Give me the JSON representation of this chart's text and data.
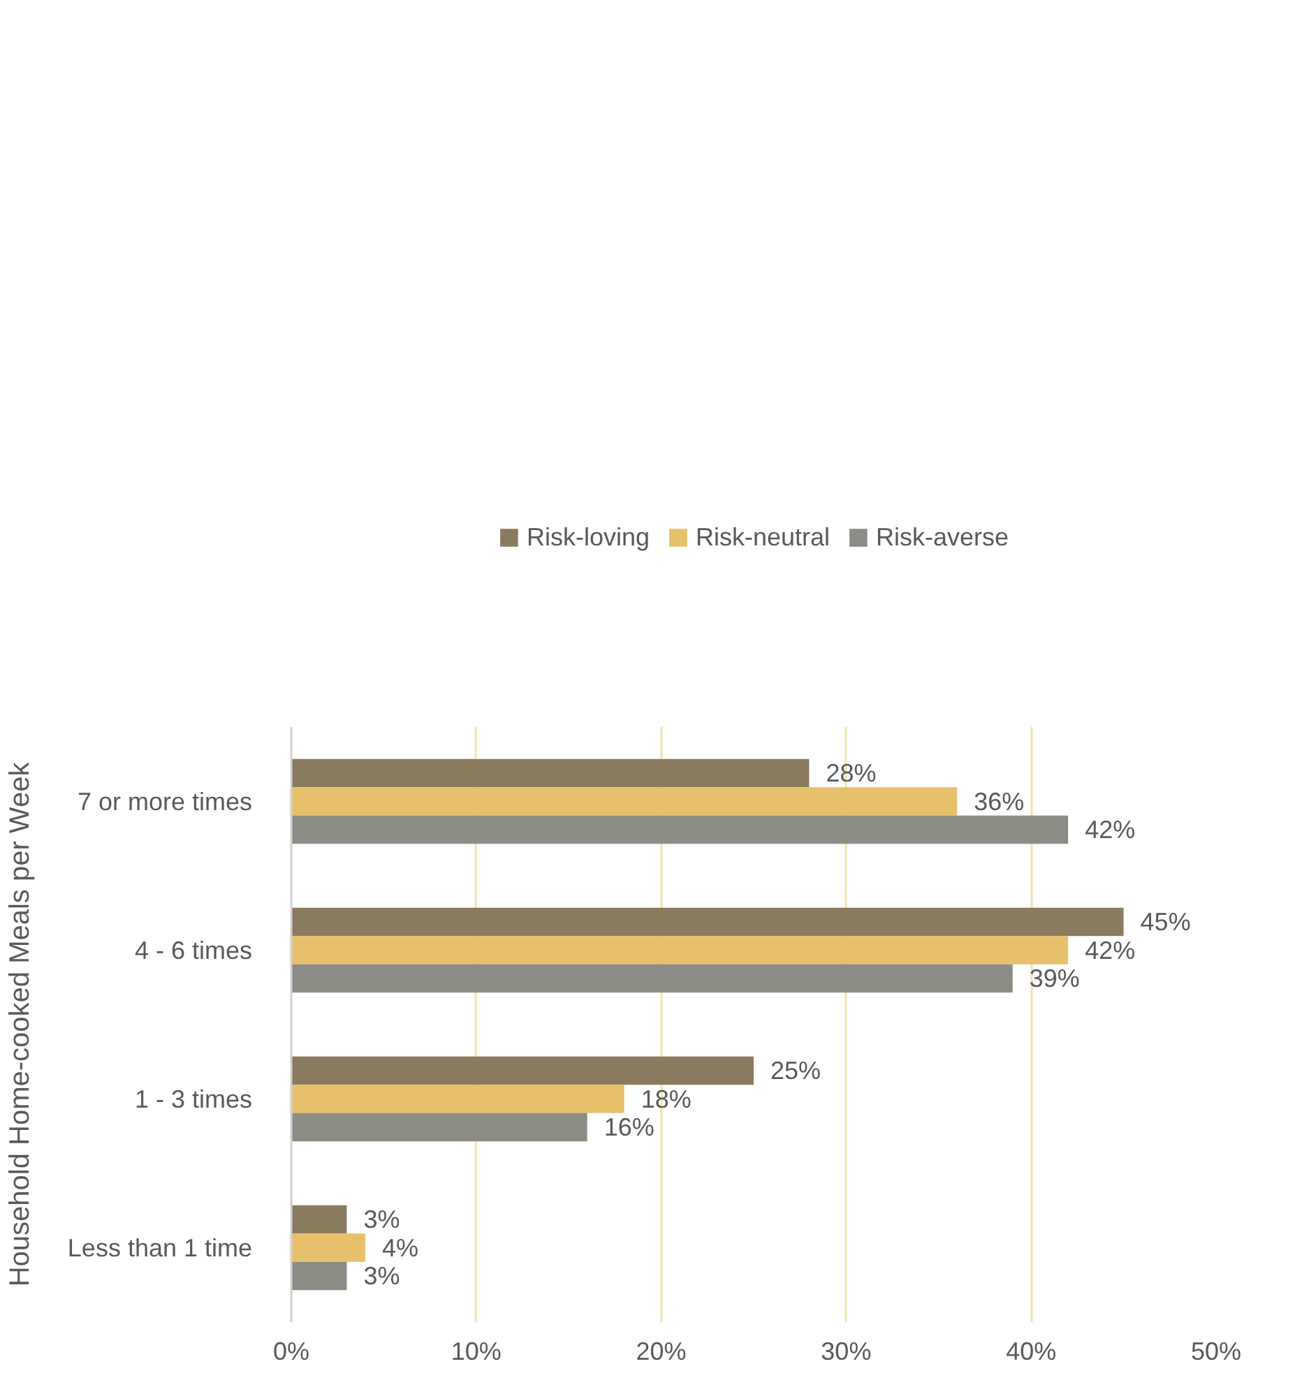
{
  "chart_data": {
    "type": "bar",
    "orientation": "horizontal",
    "ylabel": "Household Home-cooked Meals per Week",
    "categories": [
      "7 or more times",
      "4 - 6 times",
      "1 - 3 times",
      "Less than 1 time"
    ],
    "series": [
      {
        "name": "Risk-loving",
        "color": "#8b7b5e",
        "values": [
          28,
          45,
          25,
          3
        ],
        "value_labels": [
          "28%",
          "45%",
          "25%",
          "3%"
        ]
      },
      {
        "name": "Risk-neutral",
        "color": "#e6c06a",
        "values": [
          36,
          42,
          18,
          4
        ],
        "value_labels": [
          "36%",
          "42%",
          "18%",
          "4%"
        ]
      },
      {
        "name": "Risk-averse",
        "color": "#8c8c85",
        "values": [
          42,
          39,
          16,
          3
        ],
        "value_labels": [
          "42%",
          "39%",
          "16%",
          "3%"
        ]
      }
    ],
    "xlim": [
      0,
      50
    ],
    "xticks": [
      {
        "value": 0,
        "label": "0%"
      },
      {
        "value": 10,
        "label": "10%"
      },
      {
        "value": 20,
        "label": "20%"
      },
      {
        "value": 30,
        "label": "30%"
      },
      {
        "value": 40,
        "label": "40%"
      },
      {
        "value": 50,
        "label": "50%"
      }
    ],
    "grid": "x",
    "legend": "top"
  }
}
